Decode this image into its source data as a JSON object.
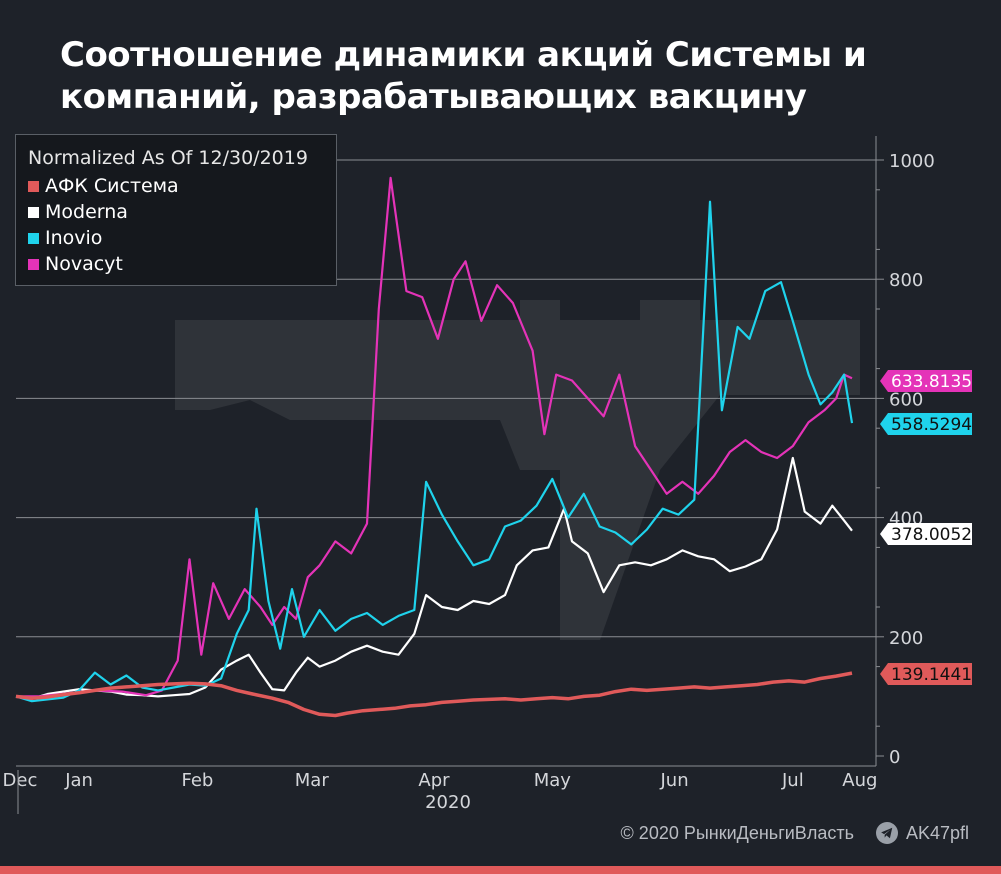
{
  "title": {
    "line1": "Соотношение динамики акций Системы и",
    "line2": "компаний, разрабатывающих вакцину"
  },
  "legend": {
    "title": "Normalized As Of 12/30/2019"
  },
  "footer": {
    "copyright": "© 2020 РынкиДеньгиВласть",
    "telegram": "AK47pfl",
    "telegram_icon": "telegram-icon"
  },
  "colors": {
    "background": "#1e2229",
    "grid": "#8a8d92",
    "axis_text": "#d4d6da",
    "sistema": "#e05a5a",
    "moderna": "#ffffff",
    "inovio": "#1fd3ec",
    "novacyt": "#e433b8",
    "bottom_bar": "#e05a5a"
  },
  "chart_data": {
    "type": "line",
    "title": "Соотношение динамики акций Системы и компаний, разрабатывающих вакцину",
    "legend_title": "Normalized As Of 12/30/2019",
    "legend_position": "top-left",
    "grid": true,
    "y_axis_side": "right",
    "x_range": [
      "2019-12-30",
      "2020-07-29"
    ],
    "ylim": [
      0,
      1000
    ],
    "y_ticks": [
      0,
      200,
      400,
      600,
      800,
      1000
    ],
    "x_ticks": [
      {
        "label": "Dec",
        "date": "2019-12-31"
      },
      {
        "label": "Jan",
        "date": "2020-01-15"
      },
      {
        "label": "Feb",
        "date": "2020-02-14"
      },
      {
        "label": "Mar",
        "date": "2020-03-14"
      },
      {
        "label": "Apr",
        "date": "2020-04-14"
      },
      {
        "label": "May",
        "date": "2020-05-14"
      },
      {
        "label": "Jun",
        "date": "2020-06-14"
      },
      {
        "label": "Jul",
        "date": "2020-07-14"
      },
      {
        "label": "Aug",
        "date": "2020-07-31"
      }
    ],
    "x_year_label": "2020",
    "series": [
      {
        "name": "АФК Система",
        "color": "#e05a5a",
        "last_value": "139.1441",
        "label_text_color": "#111111",
        "points": [
          [
            "2019-12-30",
            100
          ],
          [
            "2020-01-03",
            97
          ],
          [
            "2020-01-07",
            99
          ],
          [
            "2020-01-11",
            103
          ],
          [
            "2020-01-15",
            106
          ],
          [
            "2020-01-19",
            110
          ],
          [
            "2020-01-23",
            114
          ],
          [
            "2020-01-27",
            116
          ],
          [
            "2020-01-31",
            118
          ],
          [
            "2020-02-04",
            120
          ],
          [
            "2020-02-08",
            121
          ],
          [
            "2020-02-12",
            122
          ],
          [
            "2020-02-16",
            121
          ],
          [
            "2020-02-20",
            118
          ],
          [
            "2020-02-24",
            110
          ],
          [
            "2020-02-28",
            104
          ],
          [
            "2020-03-04",
            97
          ],
          [
            "2020-03-08",
            90
          ],
          [
            "2020-03-12",
            78
          ],
          [
            "2020-03-16",
            70
          ],
          [
            "2020-03-20",
            68
          ],
          [
            "2020-03-23",
            72
          ],
          [
            "2020-03-27",
            76
          ],
          [
            "2020-03-31",
            78
          ],
          [
            "2020-04-04",
            80
          ],
          [
            "2020-04-08",
            84
          ],
          [
            "2020-04-12",
            86
          ],
          [
            "2020-04-16",
            90
          ],
          [
            "2020-04-20",
            92
          ],
          [
            "2020-04-24",
            94
          ],
          [
            "2020-04-28",
            95
          ],
          [
            "2020-05-02",
            96
          ],
          [
            "2020-05-06",
            94
          ],
          [
            "2020-05-10",
            96
          ],
          [
            "2020-05-14",
            98
          ],
          [
            "2020-05-18",
            96
          ],
          [
            "2020-05-22",
            100
          ],
          [
            "2020-05-26",
            102
          ],
          [
            "2020-05-30",
            108
          ],
          [
            "2020-06-03",
            112
          ],
          [
            "2020-06-07",
            110
          ],
          [
            "2020-06-11",
            112
          ],
          [
            "2020-06-15",
            114
          ],
          [
            "2020-06-19",
            116
          ],
          [
            "2020-06-23",
            114
          ],
          [
            "2020-06-27",
            116
          ],
          [
            "2020-07-01",
            118
          ],
          [
            "2020-07-05",
            120
          ],
          [
            "2020-07-09",
            124
          ],
          [
            "2020-07-13",
            126
          ],
          [
            "2020-07-17",
            124
          ],
          [
            "2020-07-21",
            130
          ],
          [
            "2020-07-25",
            134
          ],
          [
            "2020-07-29",
            139.1441
          ]
        ]
      },
      {
        "name": "Moderna",
        "color": "#ffffff",
        "last_value": "378.0052",
        "label_text_color": "#111111",
        "points": [
          [
            "2019-12-30",
            100
          ],
          [
            "2020-01-03",
            96
          ],
          [
            "2020-01-07",
            104
          ],
          [
            "2020-01-11",
            108
          ],
          [
            "2020-01-15",
            112
          ],
          [
            "2020-01-19",
            110
          ],
          [
            "2020-01-23",
            108
          ],
          [
            "2020-01-27",
            103
          ],
          [
            "2020-01-31",
            102
          ],
          [
            "2020-02-04",
            100
          ],
          [
            "2020-02-08",
            102
          ],
          [
            "2020-02-12",
            104
          ],
          [
            "2020-02-16",
            115
          ],
          [
            "2020-02-20",
            145
          ],
          [
            "2020-02-24",
            160
          ],
          [
            "2020-02-27",
            170
          ],
          [
            "2020-03-01",
            140
          ],
          [
            "2020-03-04",
            112
          ],
          [
            "2020-03-07",
            110
          ],
          [
            "2020-03-10",
            140
          ],
          [
            "2020-03-13",
            165
          ],
          [
            "2020-03-16",
            150
          ],
          [
            "2020-03-20",
            160
          ],
          [
            "2020-03-24",
            175
          ],
          [
            "2020-03-28",
            185
          ],
          [
            "2020-04-01",
            175
          ],
          [
            "2020-04-05",
            170
          ],
          [
            "2020-04-09",
            205
          ],
          [
            "2020-04-12",
            270
          ],
          [
            "2020-04-16",
            250
          ],
          [
            "2020-04-20",
            245
          ],
          [
            "2020-04-24",
            260
          ],
          [
            "2020-04-28",
            255
          ],
          [
            "2020-05-02",
            270
          ],
          [
            "2020-05-05",
            320
          ],
          [
            "2020-05-09",
            345
          ],
          [
            "2020-05-13",
            350
          ],
          [
            "2020-05-17",
            415
          ],
          [
            "2020-05-19",
            360
          ],
          [
            "2020-05-23",
            340
          ],
          [
            "2020-05-27",
            275
          ],
          [
            "2020-05-31",
            320
          ],
          [
            "2020-06-04",
            325
          ],
          [
            "2020-06-08",
            320
          ],
          [
            "2020-06-12",
            330
          ],
          [
            "2020-06-16",
            345
          ],
          [
            "2020-06-20",
            335
          ],
          [
            "2020-06-24",
            330
          ],
          [
            "2020-06-28",
            310
          ],
          [
            "2020-07-02",
            318
          ],
          [
            "2020-07-06",
            330
          ],
          [
            "2020-07-10",
            380
          ],
          [
            "2020-07-14",
            500
          ],
          [
            "2020-07-17",
            410
          ],
          [
            "2020-07-21",
            390
          ],
          [
            "2020-07-24",
            420
          ],
          [
            "2020-07-27",
            395
          ],
          [
            "2020-07-29",
            378.0052
          ]
        ]
      },
      {
        "name": "Inovio",
        "color": "#1fd3ec",
        "last_value": "558.5294",
        "label_text_color": "#111111",
        "points": [
          [
            "2019-12-30",
            100
          ],
          [
            "2020-01-03",
            92
          ],
          [
            "2020-01-07",
            95
          ],
          [
            "2020-01-11",
            98
          ],
          [
            "2020-01-15",
            110
          ],
          [
            "2020-01-19",
            140
          ],
          [
            "2020-01-23",
            120
          ],
          [
            "2020-01-27",
            135
          ],
          [
            "2020-01-31",
            115
          ],
          [
            "2020-02-04",
            110
          ],
          [
            "2020-02-08",
            115
          ],
          [
            "2020-02-12",
            120
          ],
          [
            "2020-02-16",
            118
          ],
          [
            "2020-02-20",
            130
          ],
          [
            "2020-02-24",
            205
          ],
          [
            "2020-02-27",
            245
          ],
          [
            "2020-02-29",
            415
          ],
          [
            "2020-03-03",
            260
          ],
          [
            "2020-03-06",
            180
          ],
          [
            "2020-03-09",
            280
          ],
          [
            "2020-03-12",
            200
          ],
          [
            "2020-03-16",
            245
          ],
          [
            "2020-03-20",
            210
          ],
          [
            "2020-03-24",
            230
          ],
          [
            "2020-03-28",
            240
          ],
          [
            "2020-04-01",
            220
          ],
          [
            "2020-04-05",
            235
          ],
          [
            "2020-04-09",
            245
          ],
          [
            "2020-04-12",
            460
          ],
          [
            "2020-04-16",
            405
          ],
          [
            "2020-04-20",
            360
          ],
          [
            "2020-04-24",
            320
          ],
          [
            "2020-04-28",
            330
          ],
          [
            "2020-05-02",
            385
          ],
          [
            "2020-05-06",
            395
          ],
          [
            "2020-05-10",
            420
          ],
          [
            "2020-05-14",
            465
          ],
          [
            "2020-05-18",
            400
          ],
          [
            "2020-05-22",
            440
          ],
          [
            "2020-05-26",
            385
          ],
          [
            "2020-05-30",
            375
          ],
          [
            "2020-06-03",
            355
          ],
          [
            "2020-06-07",
            380
          ],
          [
            "2020-06-11",
            415
          ],
          [
            "2020-06-15",
            405
          ],
          [
            "2020-06-19",
            430
          ],
          [
            "2020-06-23",
            930
          ],
          [
            "2020-06-26",
            580
          ],
          [
            "2020-06-30",
            720
          ],
          [
            "2020-07-03",
            700
          ],
          [
            "2020-07-07",
            780
          ],
          [
            "2020-07-11",
            795
          ],
          [
            "2020-07-14",
            730
          ],
          [
            "2020-07-18",
            640
          ],
          [
            "2020-07-21",
            590
          ],
          [
            "2020-07-24",
            610
          ],
          [
            "2020-07-27",
            640
          ],
          [
            "2020-07-29",
            558.5294
          ]
        ]
      },
      {
        "name": "Novacyt",
        "color": "#e433b8",
        "last_value": "633.8135",
        "label_text_color": "#ffffff",
        "points": [
          [
            "2019-12-30",
            100
          ],
          [
            "2020-01-05",
            100
          ],
          [
            "2020-01-12",
            105
          ],
          [
            "2020-01-19",
            110
          ],
          [
            "2020-01-26",
            108
          ],
          [
            "2020-02-01",
            102
          ],
          [
            "2020-02-05",
            110
          ],
          [
            "2020-02-09",
            160
          ],
          [
            "2020-02-12",
            330
          ],
          [
            "2020-02-15",
            170
          ],
          [
            "2020-02-18",
            290
          ],
          [
            "2020-02-22",
            230
          ],
          [
            "2020-02-26",
            280
          ],
          [
            "2020-03-01",
            250
          ],
          [
            "2020-03-04",
            220
          ],
          [
            "2020-03-07",
            250
          ],
          [
            "2020-03-10",
            230
          ],
          [
            "2020-03-13",
            300
          ],
          [
            "2020-03-16",
            320
          ],
          [
            "2020-03-20",
            360
          ],
          [
            "2020-03-24",
            340
          ],
          [
            "2020-03-28",
            390
          ],
          [
            "2020-03-31",
            750
          ],
          [
            "2020-04-03",
            970
          ],
          [
            "2020-04-07",
            780
          ],
          [
            "2020-04-11",
            770
          ],
          [
            "2020-04-15",
            700
          ],
          [
            "2020-04-19",
            800
          ],
          [
            "2020-04-22",
            830
          ],
          [
            "2020-04-26",
            730
          ],
          [
            "2020-04-30",
            790
          ],
          [
            "2020-05-04",
            760
          ],
          [
            "2020-05-09",
            680
          ],
          [
            "2020-05-12",
            540
          ],
          [
            "2020-05-15",
            640
          ],
          [
            "2020-05-19",
            630
          ],
          [
            "2020-05-23",
            600
          ],
          [
            "2020-05-27",
            570
          ],
          [
            "2020-05-31",
            640
          ],
          [
            "2020-06-04",
            520
          ],
          [
            "2020-06-08",
            480
          ],
          [
            "2020-06-12",
            440
          ],
          [
            "2020-06-16",
            460
          ],
          [
            "2020-06-20",
            440
          ],
          [
            "2020-06-24",
            470
          ],
          [
            "2020-06-28",
            510
          ],
          [
            "2020-07-02",
            530
          ],
          [
            "2020-07-06",
            510
          ],
          [
            "2020-07-10",
            500
          ],
          [
            "2020-07-14",
            520
          ],
          [
            "2020-07-18",
            560
          ],
          [
            "2020-07-22",
            580
          ],
          [
            "2020-07-25",
            600
          ],
          [
            "2020-07-27",
            640
          ],
          [
            "2020-07-29",
            633.8135
          ]
        ]
      }
    ]
  }
}
